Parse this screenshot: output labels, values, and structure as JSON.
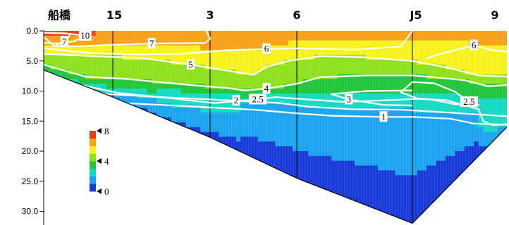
{
  "chart_data": {
    "type": "heatmap",
    "title": "",
    "xlabel": "",
    "ylabel": "",
    "y_axis": {
      "reversed": true,
      "ylim": [
        0,
        32
      ],
      "ticks": [
        0,
        5,
        10,
        15,
        20,
        25,
        30
      ],
      "tick_labels": [
        "0.0",
        "5.0",
        "10.0",
        "15.0",
        "20.0",
        "25.0",
        "30.0"
      ]
    },
    "stations": [
      {
        "label": "船橋",
        "bottom_depth": 6.5
      },
      {
        "label": "15",
        "bottom_depth": 11.0
      },
      {
        "label": "3",
        "bottom_depth": 17.7
      },
      {
        "label": "6",
        "bottom_depth": 24.5
      },
      {
        "label": "J5",
        "bottom_depth": 32.0
      },
      {
        "label": "9",
        "bottom_depth": 16.0
      }
    ],
    "colorbar": {
      "min": 0,
      "max": 8,
      "ticks": [
        0,
        4,
        8
      ],
      "tick_labels": [
        "0",
        "4",
        "8"
      ],
      "colors": [
        "#1a3ad8",
        "#1ba3ee",
        "#16d9c3",
        "#22c63a",
        "#8fe01c",
        "#f6f21e",
        "#f7a21a",
        "#ee3b17"
      ]
    },
    "contours": [
      {
        "level": 1,
        "label": "1",
        "points": [
          [
            0.42,
            11.6
          ],
          [
            1.5,
            12.3
          ],
          [
            2.5,
            13.1
          ],
          [
            3.0,
            13.7
          ],
          [
            3.3,
            14.1
          ],
          [
            3.75,
            14.3
          ],
          [
            4.0,
            14.3
          ],
          [
            4.4,
            14.6
          ],
          [
            4.65,
            15.4
          ],
          [
            5.0,
            15.6
          ]
        ]
      },
      {
        "level": 2,
        "label": "2",
        "points": [
          [
            0.0,
            8.2
          ],
          [
            0.6,
            10.3
          ],
          [
            1.5,
            11.0
          ],
          [
            2.3,
            11.6
          ],
          [
            2.8,
            12.0
          ],
          [
            3.1,
            12.6
          ],
          [
            3.45,
            13.0
          ],
          [
            3.9,
            13.1
          ],
          [
            4.4,
            13.6
          ],
          [
            4.7,
            13.9
          ],
          [
            5.0,
            14.2
          ]
        ]
      },
      {
        "level": 2.5,
        "label": "2.5",
        "points": [
          [
            0.0,
            7.4
          ],
          [
            0.5,
            8.9
          ],
          [
            1.05,
            10.3
          ],
          [
            1.6,
            11.2
          ],
          [
            2.05,
            12.0
          ],
          [
            2.55,
            11.4
          ],
          [
            2.75,
            11.0
          ],
          [
            3.1,
            11.4
          ],
          [
            3.4,
            11.8
          ],
          [
            3.7,
            11.6
          ],
          [
            4.05,
            11.3
          ],
          [
            4.35,
            11.5
          ],
          [
            4.7,
            13.0
          ],
          [
            4.75,
            15.0
          ],
          [
            4.85,
            15.7
          ],
          [
            5.0,
            15.5
          ]
        ]
      },
      {
        "level": 2.5,
        "label": "2.5",
        "points": [
          [
            4.23,
            8.7
          ],
          [
            4.0,
            8.5
          ],
          [
            3.9,
            10.2
          ],
          [
            4.05,
            11.2
          ],
          [
            4.2,
            11.4
          ],
          [
            4.45,
            12.2
          ],
          [
            4.7,
            12.3
          ],
          [
            4.6,
            11.8
          ],
          [
            4.45,
            10.1
          ],
          [
            4.23,
            8.7
          ]
        ]
      },
      {
        "level": 3,
        "label": "3",
        "points": [
          [
            4.0,
            9.9
          ],
          [
            3.6,
            10.0
          ],
          [
            3.3,
            10.5
          ],
          [
            3.45,
            11.4
          ],
          [
            3.75,
            12.3
          ],
          [
            4.0,
            12.4
          ]
        ]
      },
      {
        "level": 4,
        "label": "4",
        "points": [
          [
            0.0,
            5.6
          ],
          [
            0.6,
            7.6
          ],
          [
            1.15,
            8.0
          ],
          [
            1.8,
            9.0
          ],
          [
            2.2,
            9.5
          ],
          [
            2.4,
            9.9
          ],
          [
            2.65,
            9.6
          ],
          [
            3.0,
            8.8
          ],
          [
            3.2,
            7.7
          ],
          [
            3.6,
            7.4
          ],
          [
            4.0,
            7.4
          ],
          [
            4.3,
            7.8
          ],
          [
            4.55,
            8.2
          ],
          [
            4.8,
            9.2
          ],
          [
            5.0,
            9.0
          ]
        ]
      },
      {
        "level": 5,
        "label": "5",
        "points": [
          [
            0.0,
            3.8
          ],
          [
            0.7,
            4.2
          ],
          [
            1.3,
            4.5
          ],
          [
            1.8,
            5.6
          ],
          [
            2.2,
            6.6
          ],
          [
            2.5,
            7.3
          ],
          [
            2.65,
            6.0
          ],
          [
            2.9,
            5.0
          ],
          [
            3.2,
            4.2
          ],
          [
            3.6,
            4.4
          ],
          [
            4.0,
            5.0
          ],
          [
            4.4,
            6.2
          ],
          [
            4.7,
            7.4
          ],
          [
            5.0,
            7.6
          ]
        ]
      },
      {
        "level": 6,
        "label": "6",
        "points": [
          [
            0.0,
            2.9
          ],
          [
            0.7,
            3.7
          ],
          [
            1.25,
            3.9
          ],
          [
            1.7,
            3.8
          ],
          [
            2.2,
            3.2
          ],
          [
            2.65,
            3.0
          ],
          [
            3.0,
            2.9
          ],
          [
            3.5,
            3.1
          ],
          [
            3.9,
            2.6
          ],
          [
            4.0,
            0.0
          ]
        ]
      },
      {
        "level": 6,
        "label": "6",
        "points": [
          [
            4.15,
            4.6
          ],
          [
            4.3,
            3.8
          ],
          [
            4.5,
            3.0
          ],
          [
            4.65,
            2.4
          ],
          [
            4.85,
            3.2
          ],
          [
            5.0,
            3.4
          ]
        ]
      },
      {
        "level": 7,
        "label": "7",
        "points": [
          [
            0.0,
            1.0
          ],
          [
            0.15,
            2.5
          ],
          [
            0.4,
            2.6
          ],
          [
            1.0,
            2.3
          ],
          [
            1.4,
            2.1
          ],
          [
            1.95,
            2.0
          ],
          [
            2.0,
            1.3
          ],
          [
            1.96,
            0.0
          ]
        ]
      },
      {
        "level": 7,
        "label": "7",
        "points": [
          [
            0.17,
            2.4
          ],
          [
            0.3,
            1.8
          ],
          [
            0.4,
            0.4
          ]
        ]
      },
      {
        "level": 10,
        "label": "10",
        "points": [
          [
            0.0,
            0.3
          ],
          [
            0.3,
            0.4
          ],
          [
            0.6,
            0.8
          ],
          [
            0.45,
            1.7
          ],
          [
            0.2,
            2.1
          ],
          [
            0.0,
            2.0
          ]
        ]
      }
    ]
  }
}
